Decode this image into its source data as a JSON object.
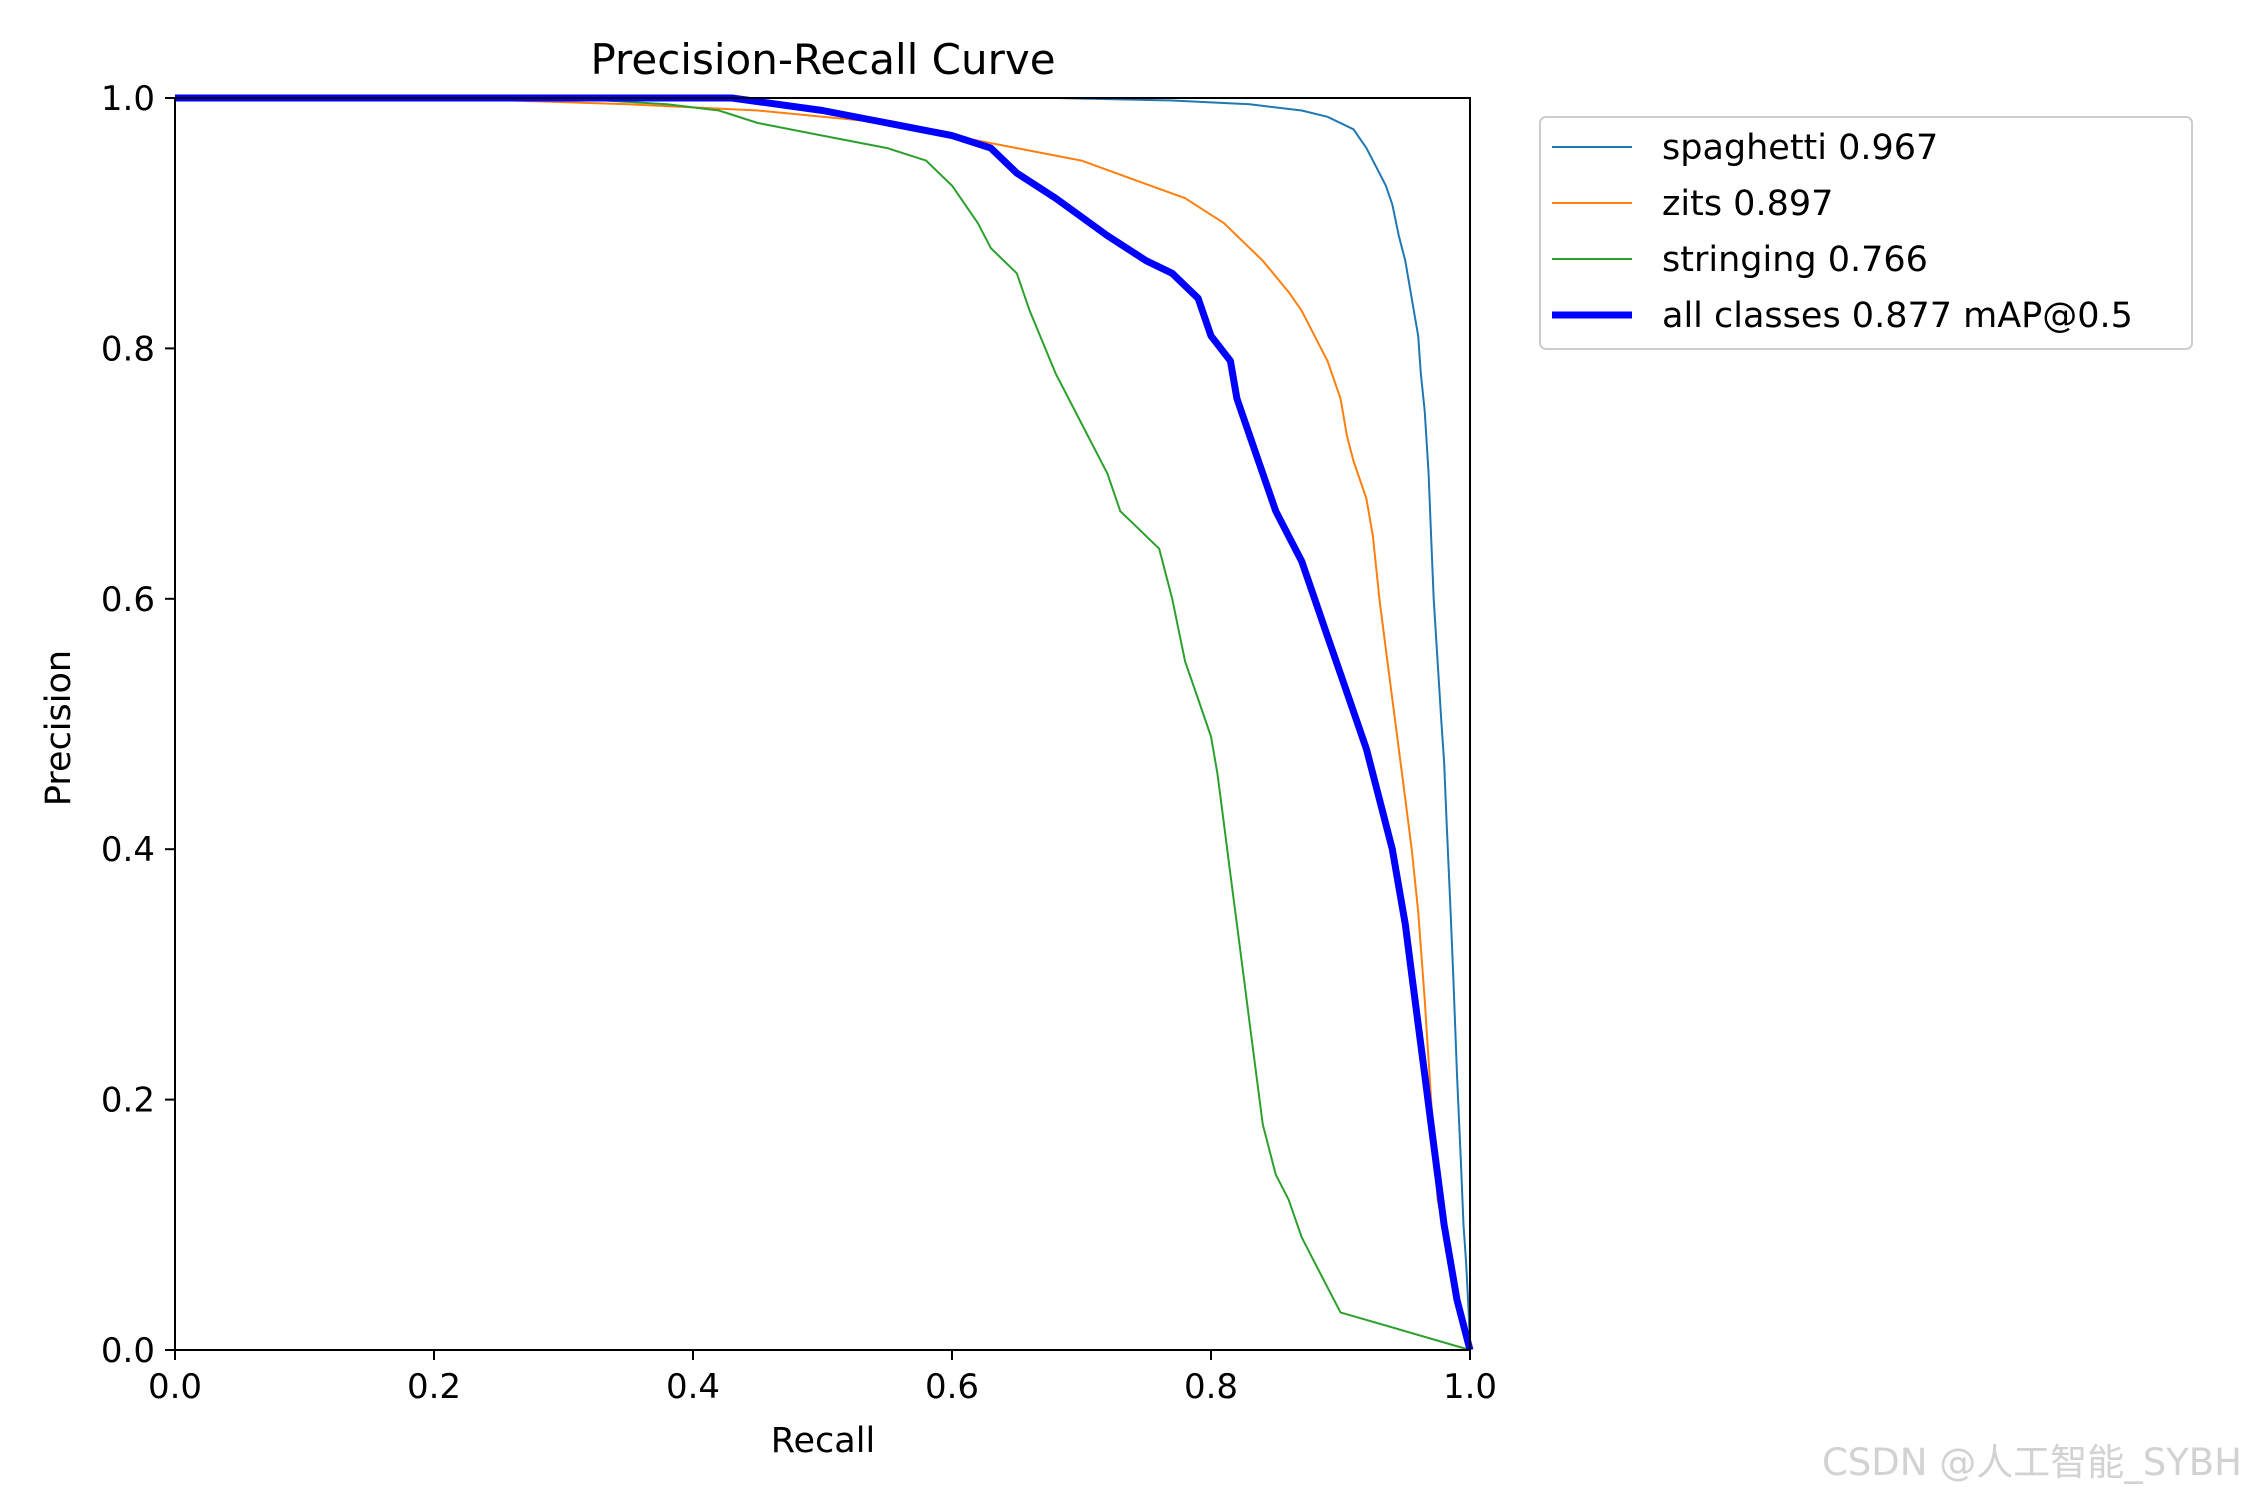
{
  "watermark": "CSDN @人工智能_SYBH",
  "chart_data": {
    "type": "line",
    "title": "Precision-Recall Curve",
    "xlabel": "Recall",
    "ylabel": "Precision",
    "xlim": [
      0,
      1
    ],
    "ylim": [
      0,
      1
    ],
    "xticks": [
      "0.0",
      "0.2",
      "0.4",
      "0.6",
      "0.8",
      "1.0"
    ],
    "yticks": [
      "0.0",
      "0.2",
      "0.4",
      "0.6",
      "0.8",
      "1.0"
    ],
    "grid": false,
    "legend_position": "outside-top-right",
    "series": [
      {
        "name": "spaghetti 0.967",
        "color": "#1f77b4",
        "width": 2,
        "x": [
          0,
          0.3,
          0.68,
          0.77,
          0.83,
          0.87,
          0.89,
          0.91,
          0.92,
          0.93,
          0.935,
          0.94,
          0.945,
          0.95,
          0.955,
          0.96,
          0.962,
          0.965,
          0.968,
          0.97,
          0.972,
          0.975,
          0.978,
          0.98,
          0.982,
          0.985,
          0.987,
          0.99,
          0.993,
          0.995,
          0.997,
          0.999,
          1.0
        ],
        "y": [
          1.0,
          1.0,
          1.0,
          0.998,
          0.995,
          0.99,
          0.985,
          0.975,
          0.96,
          0.94,
          0.93,
          0.915,
          0.89,
          0.87,
          0.84,
          0.81,
          0.78,
          0.75,
          0.7,
          0.65,
          0.6,
          0.55,
          0.5,
          0.47,
          0.42,
          0.35,
          0.3,
          0.22,
          0.15,
          0.1,
          0.07,
          0.03,
          0.0
        ]
      },
      {
        "name": "zits 0.897",
        "color": "#ff7f0e",
        "width": 2,
        "x": [
          0,
          0.2,
          0.35,
          0.45,
          0.55,
          0.6,
          0.65,
          0.7,
          0.74,
          0.78,
          0.81,
          0.84,
          0.86,
          0.87,
          0.88,
          0.89,
          0.9,
          0.905,
          0.91,
          0.92,
          0.925,
          0.93,
          0.935,
          0.94,
          0.945,
          0.95,
          0.955,
          0.96,
          0.965,
          0.97,
          0.975,
          1.0
        ],
        "y": [
          1.0,
          1.0,
          0.995,
          0.99,
          0.98,
          0.97,
          0.96,
          0.95,
          0.935,
          0.92,
          0.9,
          0.87,
          0.845,
          0.83,
          0.81,
          0.79,
          0.76,
          0.73,
          0.71,
          0.68,
          0.65,
          0.6,
          0.56,
          0.52,
          0.48,
          0.44,
          0.4,
          0.35,
          0.28,
          0.2,
          0.12,
          0.0
        ]
      },
      {
        "name": "stringing 0.766",
        "color": "#2ca02c",
        "width": 2,
        "x": [
          0,
          0.3,
          0.38,
          0.42,
          0.45,
          0.5,
          0.55,
          0.58,
          0.6,
          0.62,
          0.63,
          0.65,
          0.66,
          0.68,
          0.7,
          0.72,
          0.73,
          0.76,
          0.77,
          0.78,
          0.79,
          0.8,
          0.805,
          0.81,
          0.815,
          0.82,
          0.825,
          0.83,
          0.835,
          0.84,
          0.85,
          0.86,
          0.87,
          0.88,
          0.9,
          1.0
        ],
        "y": [
          1.0,
          1.0,
          0.995,
          0.99,
          0.98,
          0.97,
          0.96,
          0.95,
          0.93,
          0.9,
          0.88,
          0.86,
          0.83,
          0.78,
          0.74,
          0.7,
          0.67,
          0.64,
          0.6,
          0.55,
          0.52,
          0.49,
          0.46,
          0.42,
          0.38,
          0.34,
          0.3,
          0.26,
          0.22,
          0.18,
          0.14,
          0.12,
          0.09,
          0.07,
          0.03,
          0.0
        ]
      },
      {
        "name": "all classes 0.877 mAP@0.5",
        "color": "#0000ff",
        "width": 7,
        "x": [
          0,
          0.43,
          0.5,
          0.55,
          0.6,
          0.63,
          0.65,
          0.68,
          0.72,
          0.75,
          0.77,
          0.79,
          0.8,
          0.815,
          0.82,
          0.83,
          0.84,
          0.85,
          0.86,
          0.87,
          0.88,
          0.89,
          0.9,
          0.91,
          0.92,
          0.93,
          0.94,
          0.945,
          0.95,
          0.955,
          0.96,
          0.965,
          0.97,
          0.975,
          0.98,
          0.985,
          0.99,
          1.0
        ],
        "y": [
          1.0,
          1.0,
          0.99,
          0.98,
          0.97,
          0.96,
          0.94,
          0.92,
          0.89,
          0.87,
          0.86,
          0.84,
          0.81,
          0.79,
          0.76,
          0.73,
          0.7,
          0.67,
          0.65,
          0.63,
          0.6,
          0.57,
          0.54,
          0.51,
          0.48,
          0.44,
          0.4,
          0.37,
          0.34,
          0.3,
          0.26,
          0.22,
          0.18,
          0.14,
          0.1,
          0.07,
          0.04,
          0.0
        ]
      }
    ]
  }
}
